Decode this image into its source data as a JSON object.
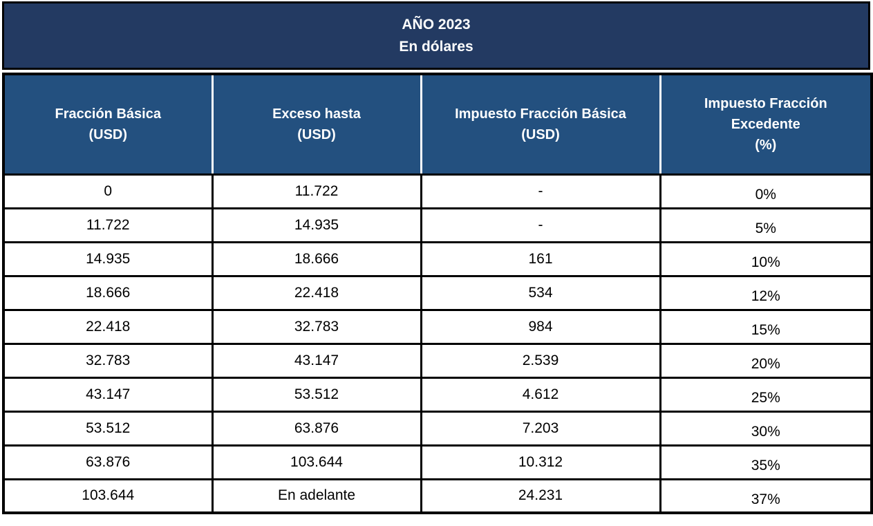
{
  "title": {
    "line1": "AÑO 2023",
    "line2": "En dólares"
  },
  "columns": [
    {
      "line1": "Fracción Básica",
      "line2": "(USD)",
      "line3": ""
    },
    {
      "line1": "Exceso hasta",
      "line2": "(USD)",
      "line3": ""
    },
    {
      "line1": "Impuesto Fracción Básica",
      "line2": "(USD)",
      "line3": ""
    },
    {
      "line1": "Impuesto Fracción",
      "line2": "Excedente",
      "line3": "(%)"
    }
  ],
  "rows": [
    [
      "0",
      "11.722",
      "-",
      "0%"
    ],
    [
      "11.722",
      "14.935",
      "-",
      "5%"
    ],
    [
      "14.935",
      "18.666",
      "161",
      "10%"
    ],
    [
      "18.666",
      "22.418",
      "534",
      "12%"
    ],
    [
      "22.418",
      "32.783",
      "984",
      "15%"
    ],
    [
      "32.783",
      "43.147",
      "2.539",
      "20%"
    ],
    [
      "43.147",
      "53.512",
      "4.612",
      "25%"
    ],
    [
      "53.512",
      "63.876",
      "7.203",
      "30%"
    ],
    [
      "63.876",
      "103.644",
      "10.312",
      "35%"
    ],
    [
      "103.644",
      "En adelante",
      "24.231",
      "37%"
    ]
  ],
  "colors": {
    "title_background": "#233A62",
    "header_background": "#23507F",
    "header_text": "#FFFFFF",
    "body_text": "#000000",
    "grid_border": "#000000",
    "header_divider": "#FFFFFF"
  }
}
